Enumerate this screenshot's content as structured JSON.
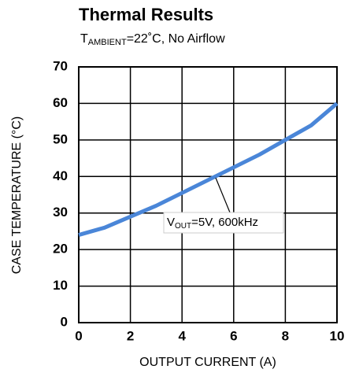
{
  "chart_data": {
    "type": "line",
    "title": "Thermal Results",
    "subtitle_parts": [
      "T",
      "AMBIENT",
      "=22˚C, No Airflow"
    ],
    "annotation_parts": [
      "V",
      "OUT",
      "=5V, 600kHz"
    ],
    "x_label": "OUTPUT CURRENT (A)",
    "y_label": "CASE TEMPERATURE (°C)",
    "x": [
      0,
      1,
      2,
      3,
      4,
      5,
      6,
      7,
      8,
      9,
      10
    ],
    "values": [
      24,
      26,
      29,
      32,
      35.5,
      39,
      42.5,
      46,
      50,
      54,
      60
    ],
    "color": "#4a86d8",
    "xlim": [
      0,
      10
    ],
    "xticks": [
      0,
      2,
      4,
      6,
      8,
      10
    ],
    "ylim": [
      0,
      70
    ],
    "yticks": [
      0,
      10,
      20,
      30,
      40,
      50,
      60,
      70
    ],
    "grid": true
  }
}
